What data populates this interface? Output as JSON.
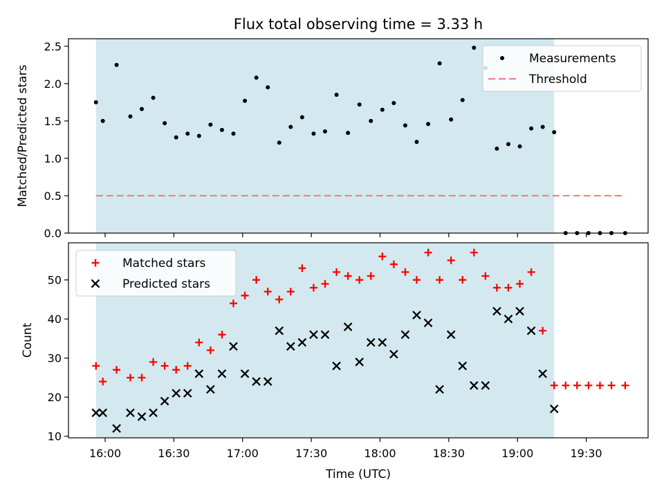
{
  "chart_data": {
    "type": "scatter",
    "title": "Flux total observing time = 3.33 h",
    "xlabel": "Time (UTC)",
    "x_ticks": [
      "16:00",
      "16:30",
      "17:00",
      "17:30",
      "18:00",
      "18:30",
      "19:00",
      "19:30"
    ],
    "x_range": [
      "15:44",
      "19:57"
    ],
    "observing_window": [
      "15:56",
      "19:16"
    ],
    "window_color": "#d3e9ef",
    "panels": [
      {
        "ylabel": "Matched/Predicted stars",
        "ylim": [
          0,
          2.6
        ],
        "y_ticks": [
          "0.0",
          "0.5",
          "1.0",
          "1.5",
          "2.0",
          "2.5"
        ],
        "legend_position": "upper right",
        "series": [
          {
            "name": "Measurements",
            "marker": "dot",
            "color": "#000000",
            "points": [
              [
                "15:56",
                1.75
              ],
              [
                "15:59",
                1.5
              ],
              [
                "16:05",
                2.25
              ],
              [
                "16:11",
                1.56
              ],
              [
                "16:16",
                1.66
              ],
              [
                "16:21",
                1.81
              ],
              [
                "16:26",
                1.47
              ],
              [
                "16:31",
                1.28
              ],
              [
                "16:36",
                1.33
              ],
              [
                "16:41",
                1.3
              ],
              [
                "16:46",
                1.45
              ],
              [
                "16:51",
                1.38
              ],
              [
                "16:56",
                1.33
              ],
              [
                "17:01",
                1.77
              ],
              [
                "17:06",
                2.08
              ],
              [
                "17:11",
                1.95
              ],
              [
                "17:16",
                1.21
              ],
              [
                "17:21",
                1.42
              ],
              [
                "17:26",
                1.55
              ],
              [
                "17:31",
                1.33
              ],
              [
                "17:36",
                1.36
              ],
              [
                "17:41",
                1.85
              ],
              [
                "17:46",
                1.34
              ],
              [
                "17:51",
                1.72
              ],
              [
                "17:56",
                1.5
              ],
              [
                "18:01",
                1.65
              ],
              [
                "18:06",
                1.74
              ],
              [
                "18:11",
                1.44
              ],
              [
                "18:16",
                1.22
              ],
              [
                "18:21",
                1.46
              ],
              [
                "18:26",
                2.27
              ],
              [
                "18:31",
                1.52
              ],
              [
                "18:36",
                1.78
              ],
              [
                "18:41",
                2.48
              ],
              [
                "18:46",
                2.21
              ],
              [
                "18:51",
                1.13
              ],
              [
                "18:56",
                1.19
              ],
              [
                "19:01",
                1.16
              ],
              [
                "19:06",
                1.4
              ],
              [
                "19:11",
                1.42
              ],
              [
                "19:16",
                1.35
              ],
              [
                "19:21",
                0.0
              ],
              [
                "19:26",
                0.0
              ],
              [
                "19:31",
                0.0
              ],
              [
                "19:36",
                0.0
              ],
              [
                "19:41",
                0.0
              ],
              [
                "19:47",
                0.0
              ]
            ]
          },
          {
            "name": "Threshold",
            "marker": "dashed-line",
            "color": "#f08080",
            "points": [
              [
                "15:56",
                0.5
              ],
              [
                "19:47",
                0.5
              ]
            ]
          }
        ]
      },
      {
        "ylabel": "Count",
        "ylim": [
          9.6,
          59.5
        ],
        "y_ticks": [
          "10",
          "20",
          "30",
          "40",
          "50"
        ],
        "legend_position": "upper left",
        "series": [
          {
            "name": "Matched stars",
            "marker": "plus",
            "color": "#ff0000",
            "points": [
              [
                "15:56",
                28
              ],
              [
                "15:59",
                24
              ],
              [
                "16:05",
                27
              ],
              [
                "16:11",
                25
              ],
              [
                "16:16",
                25
              ],
              [
                "16:21",
                29
              ],
              [
                "16:26",
                28
              ],
              [
                "16:31",
                27
              ],
              [
                "16:36",
                28
              ],
              [
                "16:41",
                34
              ],
              [
                "16:46",
                32
              ],
              [
                "16:51",
                36
              ],
              [
                "16:56",
                44
              ],
              [
                "17:01",
                46
              ],
              [
                "17:06",
                50
              ],
              [
                "17:11",
                47
              ],
              [
                "17:16",
                45
              ],
              [
                "17:21",
                47
              ],
              [
                "17:26",
                53
              ],
              [
                "17:31",
                48
              ],
              [
                "17:36",
                49
              ],
              [
                "17:41",
                52
              ],
              [
                "17:46",
                51
              ],
              [
                "17:51",
                50
              ],
              [
                "17:56",
                51
              ],
              [
                "18:01",
                56
              ],
              [
                "18:06",
                54
              ],
              [
                "18:11",
                52
              ],
              [
                "18:16",
                50
              ],
              [
                "18:21",
                57
              ],
              [
                "18:26",
                50
              ],
              [
                "18:31",
                55
              ],
              [
                "18:36",
                50
              ],
              [
                "18:41",
                57
              ],
              [
                "18:46",
                51
              ],
              [
                "18:51",
                48
              ],
              [
                "18:56",
                48
              ],
              [
                "19:01",
                49
              ],
              [
                "19:06",
                52
              ],
              [
                "19:11",
                37
              ],
              [
                "19:16",
                23
              ],
              [
                "19:21",
                23
              ],
              [
                "19:26",
                23
              ],
              [
                "19:31",
                23
              ],
              [
                "19:36",
                23
              ],
              [
                "19:41",
                23
              ],
              [
                "19:47",
                23
              ]
            ]
          },
          {
            "name": "Predicted stars",
            "marker": "x",
            "color": "#000000",
            "points": [
              [
                "15:56",
                16
              ],
              [
                "15:59",
                16
              ],
              [
                "16:05",
                12
              ],
              [
                "16:11",
                16
              ],
              [
                "16:16",
                15
              ],
              [
                "16:21",
                16
              ],
              [
                "16:26",
                19
              ],
              [
                "16:31",
                21
              ],
              [
                "16:36",
                21
              ],
              [
                "16:41",
                26
              ],
              [
                "16:46",
                22
              ],
              [
                "16:51",
                26
              ],
              [
                "16:56",
                33
              ],
              [
                "17:01",
                26
              ],
              [
                "17:06",
                24
              ],
              [
                "17:11",
                24
              ],
              [
                "17:16",
                37
              ],
              [
                "17:21",
                33
              ],
              [
                "17:26",
                34
              ],
              [
                "17:31",
                36
              ],
              [
                "17:36",
                36
              ],
              [
                "17:41",
                28
              ],
              [
                "17:46",
                38
              ],
              [
                "17:51",
                29
              ],
              [
                "17:56",
                34
              ],
              [
                "18:01",
                34
              ],
              [
                "18:06",
                31
              ],
              [
                "18:11",
                36
              ],
              [
                "18:16",
                41
              ],
              [
                "18:21",
                39
              ],
              [
                "18:26",
                22
              ],
              [
                "18:31",
                36
              ],
              [
                "18:36",
                28
              ],
              [
                "18:41",
                23
              ],
              [
                "18:46",
                23
              ],
              [
                "18:51",
                42
              ],
              [
                "18:56",
                40
              ],
              [
                "19:01",
                42
              ],
              [
                "19:06",
                37
              ],
              [
                "19:11",
                26
              ],
              [
                "19:16",
                17
              ]
            ]
          }
        ]
      }
    ]
  }
}
